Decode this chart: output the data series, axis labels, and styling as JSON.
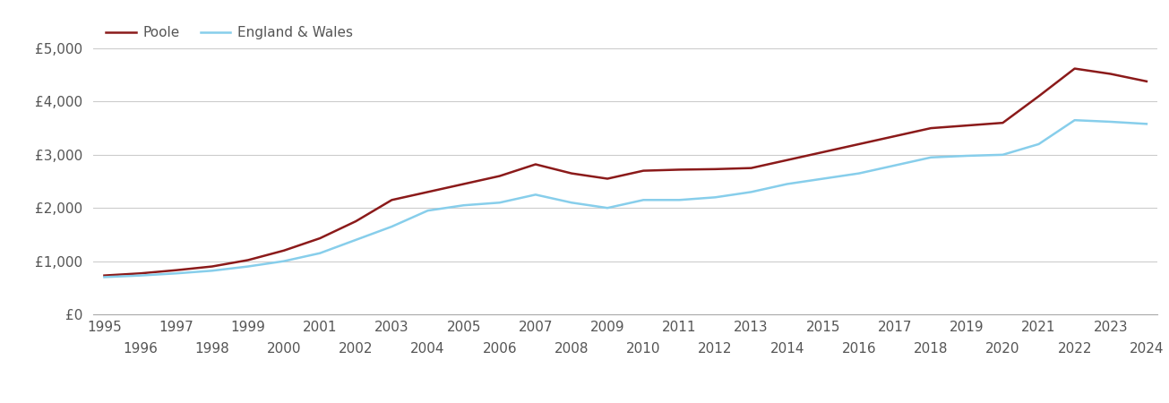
{
  "years": [
    1995,
    1996,
    1997,
    1998,
    1999,
    2000,
    2001,
    2002,
    2003,
    2004,
    2005,
    2006,
    2007,
    2008,
    2009,
    2010,
    2011,
    2012,
    2013,
    2014,
    2015,
    2016,
    2017,
    2018,
    2019,
    2020,
    2021,
    2022,
    2023,
    2024
  ],
  "poole": [
    730,
    770,
    830,
    900,
    1020,
    1200,
    1430,
    1750,
    2150,
    2300,
    2450,
    2600,
    2820,
    2650,
    2550,
    2700,
    2720,
    2730,
    2750,
    2900,
    3050,
    3200,
    3350,
    3500,
    3550,
    3600,
    4100,
    4620,
    4520,
    4380
  ],
  "england_wales": [
    700,
    730,
    770,
    820,
    900,
    1000,
    1150,
    1400,
    1650,
    1950,
    2050,
    2100,
    2250,
    2100,
    2000,
    2150,
    2150,
    2200,
    2300,
    2450,
    2550,
    2650,
    2800,
    2950,
    2980,
    3000,
    3200,
    3650,
    3620,
    3580
  ],
  "poole_color": "#8b1a1a",
  "ew_color": "#87CEEB",
  "poole_label": "Poole",
  "ew_label": "England & Wales",
  "ylim": [
    0,
    5000
  ],
  "yticks": [
    0,
    1000,
    2000,
    3000,
    4000,
    5000
  ],
  "ytick_labels": [
    "£0",
    "£1,000",
    "£2,000",
    "£3,000",
    "£4,000",
    "£5,000"
  ],
  "line_width": 1.8,
  "background_color": "#ffffff",
  "grid_color": "#cccccc",
  "tick_color": "#555555",
  "label_fontsize": 11,
  "legend_fontsize": 11
}
